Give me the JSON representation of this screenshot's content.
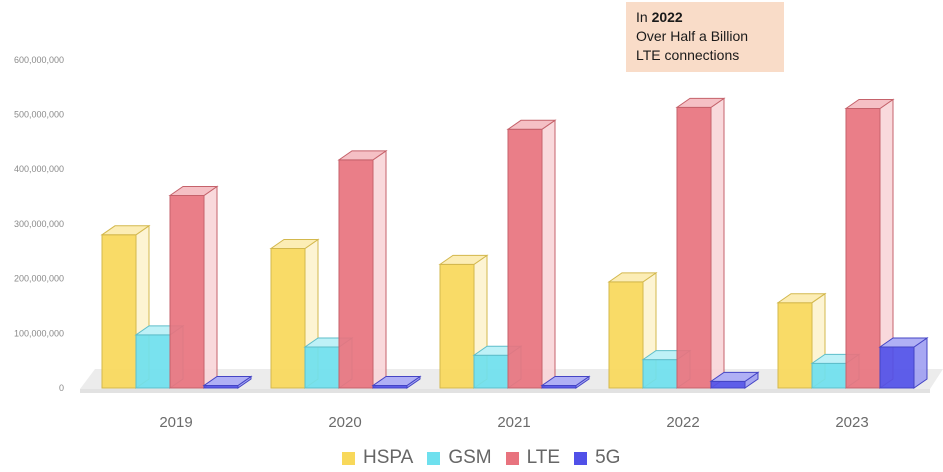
{
  "chart_data": {
    "type": "bar",
    "categories": [
      "2019",
      "2020",
      "2021",
      "2022",
      "2023"
    ],
    "series": [
      {
        "name": "HSPA",
        "values": [
          280000000,
          255000000,
          226000000,
          194000000,
          156000000
        ]
      },
      {
        "name": "GSM",
        "values": [
          97000000,
          75000000,
          60000000,
          52000000,
          45000000
        ]
      },
      {
        "name": "LTE",
        "values": [
          352000000,
          417000000,
          473000000,
          513000000,
          511000000
        ]
      },
      {
        "name": "5G",
        "values": [
          0,
          0,
          3000000,
          12000000,
          75000000
        ]
      }
    ],
    "colors": {
      "HSPA": "#f8d85a",
      "GSM": "#6ee0ee",
      "LTE": "#e8737e",
      "5G": "#5050e8"
    },
    "ylim": [
      0,
      600000000
    ],
    "yticks": [
      "0",
      "100,000,000",
      "200,000,000",
      "300,000,000",
      "400,000,000",
      "500,000,000",
      "600,000,000"
    ],
    "ytick_values": [
      0,
      100000000,
      200000000,
      300000000,
      400000000,
      500000000,
      600000000
    ],
    "grid": false,
    "legend_position": "bottom",
    "style": "3d-clustered-column"
  },
  "annotation": {
    "prefix": "In ",
    "year": "2022",
    "line2": "Over Half a  Billion",
    "line3": "LTE connections"
  }
}
